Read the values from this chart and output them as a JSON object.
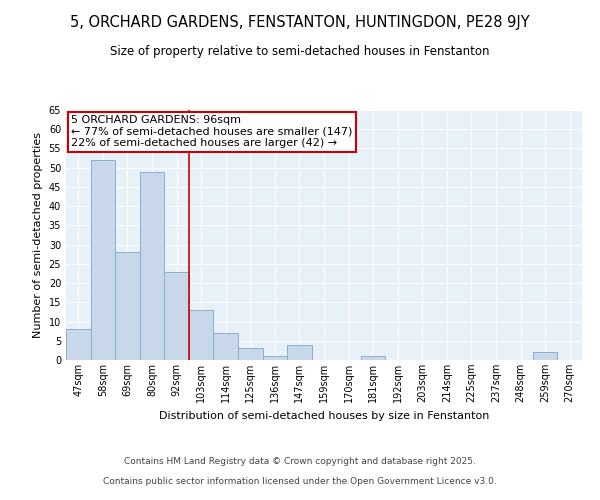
{
  "title": "5, ORCHARD GARDENS, FENSTANTON, HUNTINGDON, PE28 9JY",
  "subtitle": "Size of property relative to semi-detached houses in Fenstanton",
  "xlabel": "Distribution of semi-detached houses by size in Fenstanton",
  "ylabel": "Number of semi-detached properties",
  "bin_labels": [
    "47sqm",
    "58sqm",
    "69sqm",
    "80sqm",
    "92sqm",
    "103sqm",
    "114sqm",
    "125sqm",
    "136sqm",
    "147sqm",
    "159sqm",
    "170sqm",
    "181sqm",
    "192sqm",
    "203sqm",
    "214sqm",
    "225sqm",
    "237sqm",
    "248sqm",
    "259sqm",
    "270sqm"
  ],
  "counts": [
    8,
    52,
    28,
    49,
    23,
    13,
    7,
    3,
    1,
    4,
    0,
    0,
    1,
    0,
    0,
    0,
    0,
    0,
    0,
    2,
    0
  ],
  "bar_color": "#c8d8ea",
  "bar_edge_color": "#8ab0cc",
  "bar_linewidth": 0.7,
  "vline_bin_index": 4,
  "vline_color": "#cc0000",
  "vline_linewidth": 1.2,
  "annotation_text_line1": "5 ORCHARD GARDENS: 96sqm",
  "annotation_text_line2": "← 77% of semi-detached houses are smaller (147)",
  "annotation_text_line3": "22% of semi-detached houses are larger (42) →",
  "annotation_box_facecolor": "#ffffff",
  "annotation_box_edgecolor": "#cc0000",
  "ylim": [
    0,
    65
  ],
  "yticks": [
    0,
    5,
    10,
    15,
    20,
    25,
    30,
    35,
    40,
    45,
    50,
    55,
    60,
    65
  ],
  "plot_bg_color": "#e8f0f8",
  "fig_bg_color": "#ffffff",
  "grid_color": "#ffffff",
  "footer_line1": "Contains HM Land Registry data © Crown copyright and database right 2025.",
  "footer_line2": "Contains public sector information licensed under the Open Government Licence v3.0.",
  "title_fontsize": 10.5,
  "subtitle_fontsize": 8.5,
  "axis_label_fontsize": 8,
  "tick_fontsize": 7,
  "footer_fontsize": 6.5,
  "annotation_fontsize": 8
}
